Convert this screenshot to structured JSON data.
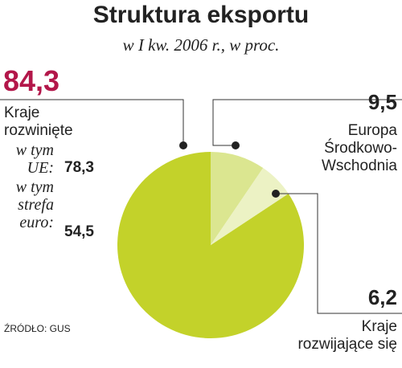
{
  "chart_data": {
    "type": "pie",
    "title": "Struktura eksportu",
    "subtitle": "w I kw. 2006 r., w proc.",
    "categories": [
      "Kraje rozwinięte",
      "Europa Środkowo-Wschodnia",
      "Kraje rozwijające się"
    ],
    "values": [
      84.3,
      9.5,
      6.2
    ],
    "value_labels": [
      "84,3",
      "9,5",
      "6,2"
    ],
    "colors": [
      "#c3d22a",
      "#dbe690",
      "#ecf2c4"
    ],
    "details": [
      {
        "text": "w tym UE:",
        "value": 78.3,
        "value_label": "78,3"
      },
      {
        "text": "w tym strefa euro:",
        "value": 54.5,
        "value_label": "54,5"
      }
    ],
    "source": "ŹRÓDŁO: GUS"
  }
}
